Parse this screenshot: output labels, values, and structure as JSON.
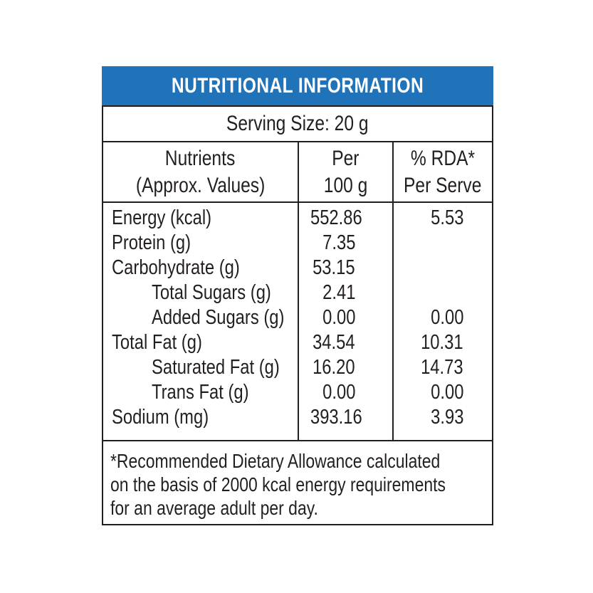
{
  "title": "NUTRITIONAL INFORMATION",
  "serving_size": "Serving Size: 20 g",
  "columns": {
    "nutrients": {
      "line1": "Nutrients",
      "line2": "(Approx. Values)"
    },
    "per_100g": {
      "line1": "Per",
      "line2": "100 g"
    },
    "rda": {
      "line1": "% RDA*",
      "line2": "Per Serve"
    }
  },
  "rows": [
    {
      "name": "Energy (kcal)",
      "per_100g": "552.86",
      "rda": "5.53"
    },
    {
      "name": "Protein (g)",
      "per_100g": "7.35",
      "rda": ""
    },
    {
      "name": "Carbohydrate (g)",
      "per_100g": "53.15",
      "rda": ""
    },
    {
      "name": "Total Sugars (g)",
      "per_100g": "2.41",
      "rda": ""
    },
    {
      "name": "Added Sugars (g)",
      "per_100g": "0.00",
      "rda": "0.00"
    },
    {
      "name": "Total Fat (g)",
      "per_100g": "34.54",
      "rda": "10.31"
    },
    {
      "name": "Saturated Fat (g)",
      "per_100g": "16.20",
      "rda": "14.73"
    },
    {
      "name": "Trans Fat (g)",
      "per_100g": "0.00",
      "rda": "0.00"
    },
    {
      "name": "Sodium (mg)",
      "per_100g": "393.16",
      "rda": "3.93"
    }
  ],
  "footnote": {
    "lines": [
      "*Recommended Dietary Allowance calculated",
      "on the basis of 2000 kcal energy requirements",
      "for an average adult per day."
    ]
  },
  "colors": {
    "header_bg": "#2173b9",
    "header_text": "#ffffff",
    "text": "#231f20",
    "border": "#231f20"
  }
}
